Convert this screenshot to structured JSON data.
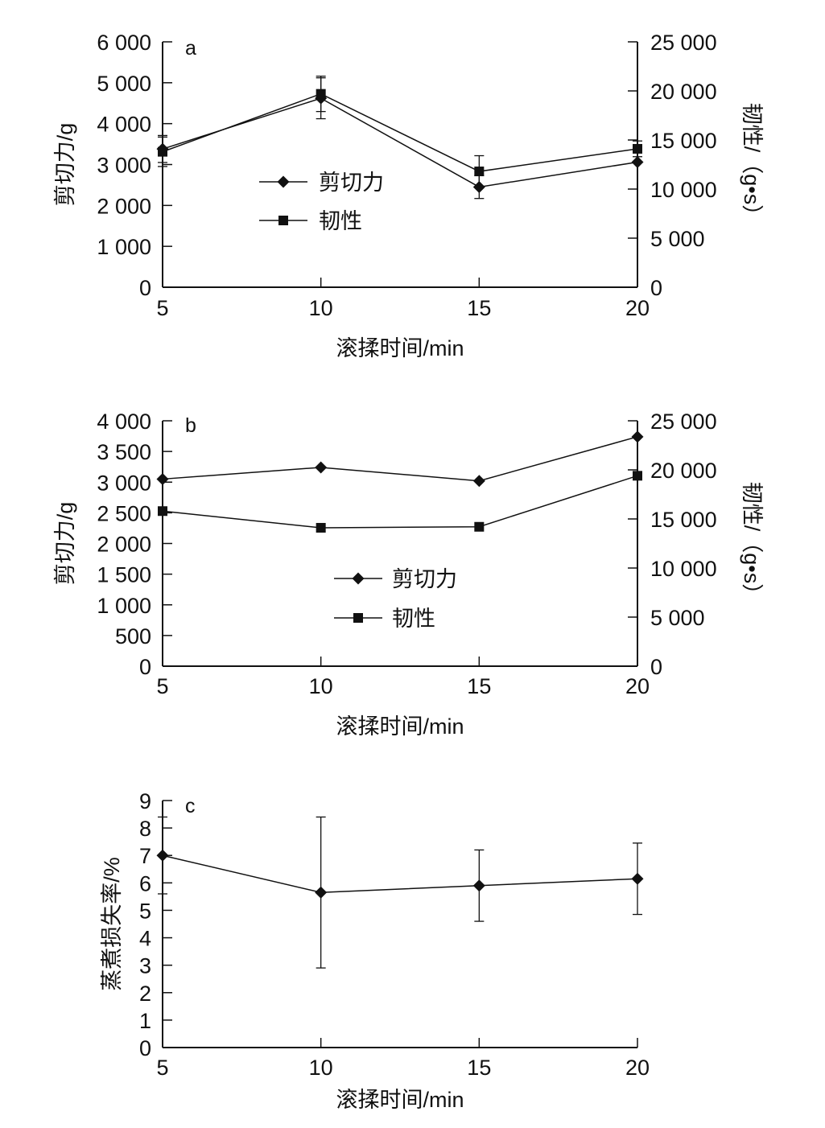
{
  "colors": {
    "ink": "#111111",
    "background": "#ffffff"
  },
  "chart_data": [
    {
      "type": "line",
      "panel_label": "a",
      "x": [
        5,
        10,
        15,
        20
      ],
      "xlim": [
        5,
        20
      ],
      "xticks": [
        "5",
        "10",
        "15",
        "20"
      ],
      "xlabel": "滚揉时间/min",
      "ylabel": "剪切力/g",
      "ylim": [
        0,
        6000
      ],
      "yticks": [
        "0",
        "1 000",
        "2 000",
        "3 000",
        "4 000",
        "5 000",
        "6 000"
      ],
      "y2label": "韧性/（g•s）",
      "y2lim": [
        0,
        25000
      ],
      "y2ticks": [
        "0",
        "5 000",
        "10 000",
        "15 000",
        "20 000",
        "25 000"
      ],
      "grid": false,
      "legend_position": "center-left",
      "series": [
        {
          "name": "剪切力",
          "axis": "left",
          "marker": "diamond",
          "values": [
            3380,
            4620,
            2450,
            3060
          ],
          "errors": [
            330,
            500,
            280,
            0
          ]
        },
        {
          "name": "韧性",
          "axis": "right",
          "marker": "square",
          "values": [
            13800,
            19700,
            11800,
            14100
          ],
          "errors": [
            1500,
            1800,
            1600,
            800
          ]
        }
      ]
    },
    {
      "type": "line",
      "panel_label": "b",
      "x": [
        5,
        10,
        15,
        20
      ],
      "xlim": [
        5,
        20
      ],
      "xticks": [
        "5",
        "10",
        "15",
        "20"
      ],
      "xlabel": "滚揉时间/min",
      "ylabel": "剪切力/g",
      "ylim": [
        0,
        4000
      ],
      "yticks": [
        "0",
        "500",
        "1 000",
        "1 500",
        "2 000",
        "2 500",
        "3 000",
        "3 500",
        "4 000"
      ],
      "y2label": "韧性/（g•s）",
      "y2lim": [
        0,
        25000
      ],
      "y2ticks": [
        "0",
        "5 000",
        "10 000",
        "15 000",
        "20 000",
        "25 000"
      ],
      "grid": false,
      "legend_position": "center",
      "series": [
        {
          "name": "剪切力",
          "axis": "left",
          "marker": "diamond",
          "values": [
            3050,
            3240,
            3020,
            3740
          ]
        },
        {
          "name": "韧性",
          "axis": "right",
          "marker": "square",
          "values": [
            15800,
            14100,
            14200,
            19400
          ]
        }
      ]
    },
    {
      "type": "line",
      "panel_label": "c",
      "x": [
        5,
        10,
        15,
        20
      ],
      "xlim": [
        5,
        20
      ],
      "xticks": [
        "5",
        "10",
        "15",
        "20"
      ],
      "xlabel": "滚揉时间/min",
      "ylabel": "蒸煮损失率/%",
      "ylim": [
        0,
        9
      ],
      "yticks": [
        "0",
        "1",
        "2",
        "3",
        "4",
        "5",
        "6",
        "7",
        "8",
        "9"
      ],
      "grid": false,
      "series": [
        {
          "axis": "left",
          "marker": "diamond",
          "values": [
            7.0,
            5.65,
            5.9,
            6.15
          ],
          "errors": [
            1.4,
            2.75,
            1.3,
            1.3
          ]
        }
      ]
    }
  ]
}
